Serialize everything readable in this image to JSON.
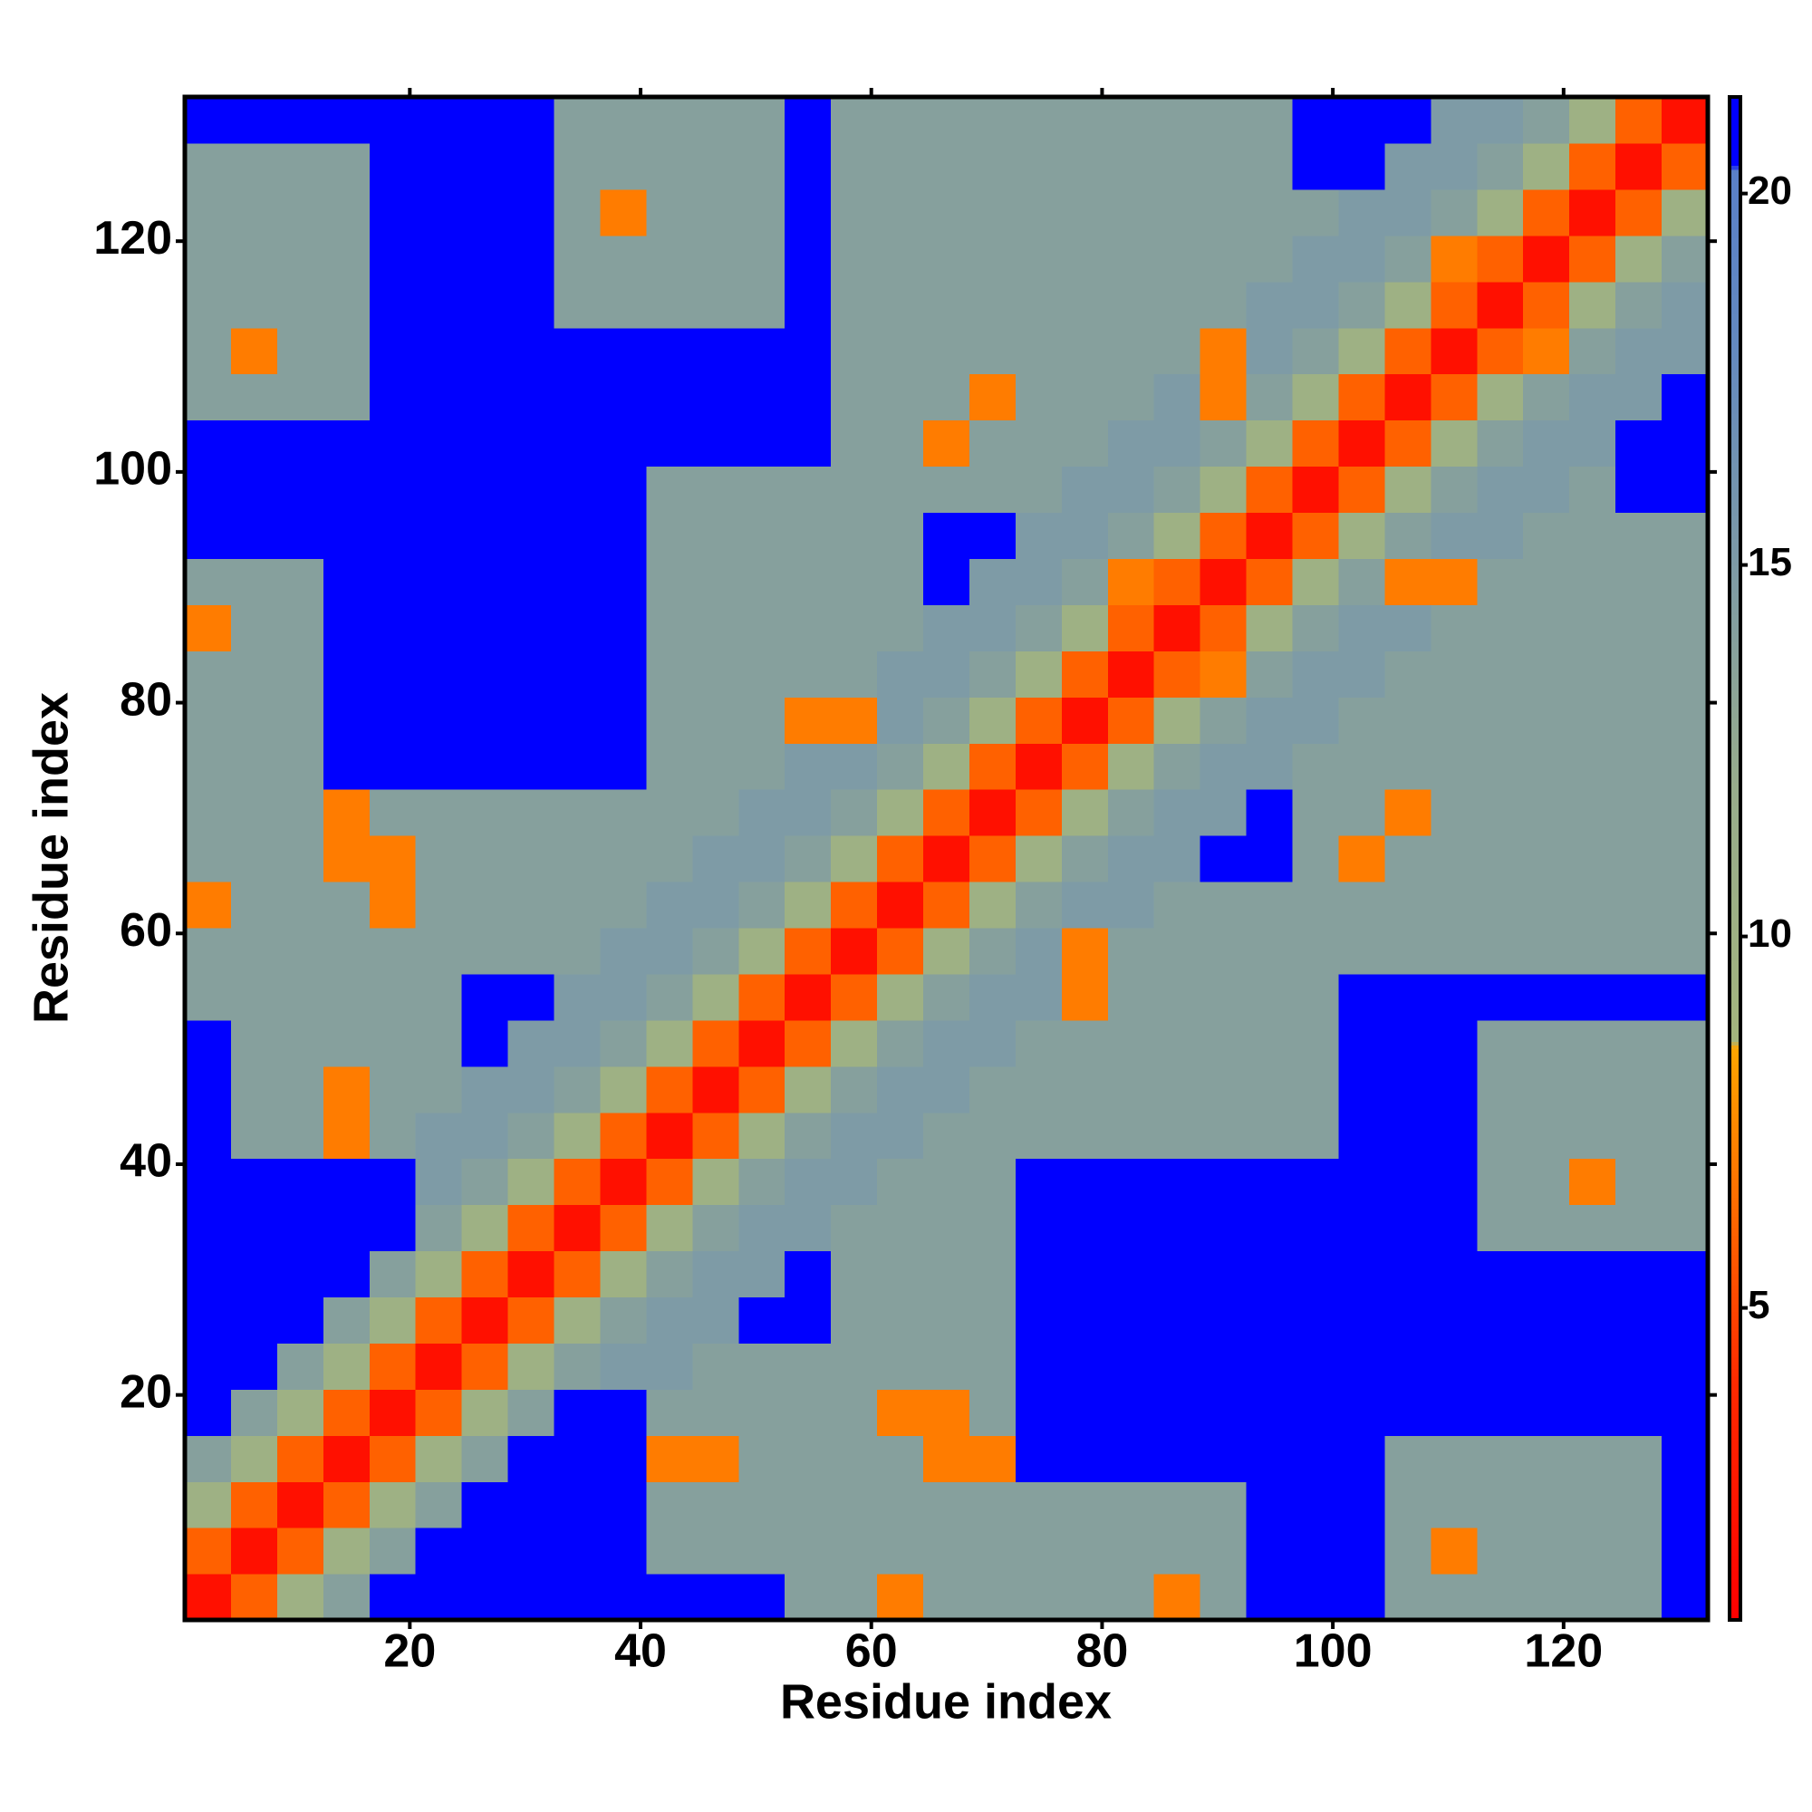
{
  "chart_data": {
    "type": "heatmap",
    "x_label": "Residue index",
    "y_label": "Residue index",
    "xlim": [
      0.5,
      132.5
    ],
    "ylim": [
      0.5,
      132.5
    ],
    "xticks": [
      20,
      40,
      60,
      80,
      100,
      120
    ],
    "yticks": [
      20,
      40,
      60,
      80,
      100,
      120
    ],
    "xbins": [
      0.5,
      4.5,
      8.5,
      12.5,
      16.5,
      20.5,
      24.5,
      28.5,
      32.5,
      36.5,
      40.5,
      44.5,
      48.5,
      52.5,
      56.5,
      60.5,
      64.5,
      68.5,
      72.5,
      76.5,
      80.5,
      84.5,
      88.5,
      92.5,
      96.5,
      100.5,
      104.5,
      108.5,
      112.5,
      116.5,
      120.5,
      124.5,
      128.5,
      132.5
    ],
    "ybins": [
      0.5,
      4.5,
      8.5,
      12.5,
      16.5,
      20.5,
      24.5,
      28.5,
      32.5,
      36.5,
      40.5,
      44.5,
      48.5,
      52.5,
      56.5,
      60.5,
      64.5,
      68.5,
      72.5,
      76.5,
      80.5,
      84.5,
      88.5,
      92.5,
      96.5,
      100.5,
      104.5,
      108.5,
      112.5,
      116.5,
      120.5,
      124.5,
      128.5,
      132.5
    ],
    "zlim": [
      0.8,
      21.3
    ],
    "zticks": [
      5,
      10,
      15,
      20
    ],
    "colorscale": [
      [
        0.8,
        "#ff0000"
      ],
      [
        4,
        "#ff2a00"
      ],
      [
        8.5,
        "#ffa500"
      ],
      [
        8.6,
        "#a3b47e"
      ],
      [
        12,
        "#98ac8c"
      ],
      [
        18,
        "#6389c0"
      ],
      [
        20.3,
        "#5a80c8"
      ],
      [
        20.4,
        "#0000ff"
      ],
      [
        21.3,
        "#0000ff"
      ]
    ],
    "z": [
      [
        2,
        6,
        10,
        14,
        21,
        21,
        21,
        21,
        21,
        21,
        21,
        21,
        21,
        14,
        14,
        7,
        14,
        14,
        14,
        14,
        14,
        7,
        14,
        21,
        21,
        21,
        14,
        14,
        14,
        14,
        14,
        14,
        21
      ],
      [
        6,
        2,
        6,
        10,
        14,
        21,
        21,
        21,
        21,
        21,
        14,
        14,
        14,
        14,
        14,
        14,
        14,
        14,
        14,
        14,
        14,
        14,
        14,
        21,
        21,
        21,
        14,
        7,
        14,
        14,
        14,
        14,
        21
      ],
      [
        10,
        6,
        2,
        6,
        10,
        14,
        21,
        21,
        21,
        21,
        14,
        14,
        14,
        14,
        14,
        14,
        14,
        14,
        14,
        14,
        14,
        14,
        14,
        21,
        21,
        21,
        14,
        14,
        14,
        14,
        14,
        14,
        21
      ],
      [
        14,
        10,
        6,
        2,
        6,
        10,
        14,
        21,
        21,
        21,
        7,
        7,
        14,
        14,
        14,
        14,
        7,
        7,
        21,
        21,
        21,
        21,
        21,
        21,
        21,
        21,
        14,
        14,
        14,
        14,
        14,
        14,
        21
      ],
      [
        21,
        14,
        10,
        6,
        2,
        6,
        10,
        14,
        21,
        21,
        14,
        14,
        14,
        14,
        14,
        7,
        7,
        14,
        21,
        21,
        21,
        21,
        21,
        21,
        21,
        21,
        21,
        21,
        21,
        21,
        21,
        21,
        21
      ],
      [
        21,
        21,
        14,
        10,
        6,
        2,
        6,
        10,
        14,
        15,
        15,
        14,
        14,
        14,
        14,
        14,
        14,
        14,
        21,
        21,
        21,
        21,
        21,
        21,
        21,
        21,
        21,
        21,
        21,
        21,
        21,
        21,
        21
      ],
      [
        21,
        21,
        21,
        14,
        10,
        6,
        2,
        6,
        10,
        14,
        15,
        15,
        21,
        21,
        14,
        14,
        14,
        14,
        21,
        21,
        21,
        21,
        21,
        21,
        21,
        21,
        21,
        21,
        21,
        21,
        21,
        21,
        21
      ],
      [
        21,
        21,
        21,
        21,
        14,
        10,
        6,
        2,
        6,
        10,
        14,
        15,
        15,
        21,
        14,
        14,
        14,
        14,
        21,
        21,
        21,
        21,
        21,
        21,
        21,
        21,
        21,
        21,
        21,
        21,
        21,
        21,
        21
      ],
      [
        21,
        21,
        21,
        21,
        21,
        14,
        10,
        6,
        2,
        6,
        10,
        14,
        15,
        15,
        14,
        14,
        14,
        14,
        21,
        21,
        21,
        21,
        21,
        21,
        21,
        21,
        21,
        21,
        14,
        14,
        14,
        14,
        14
      ],
      [
        21,
        21,
        21,
        21,
        21,
        15,
        14,
        10,
        6,
        2,
        6,
        10,
        14,
        15,
        15,
        14,
        14,
        14,
        21,
        21,
        21,
        21,
        21,
        21,
        21,
        21,
        21,
        21,
        14,
        14,
        7,
        14,
        14
      ],
      [
        21,
        14,
        14,
        7,
        14,
        15,
        15,
        14,
        10,
        6,
        2,
        6,
        10,
        14,
        15,
        15,
        14,
        14,
        14,
        14,
        14,
        14,
        14,
        14,
        14,
        21,
        21,
        21,
        14,
        14,
        14,
        14,
        14
      ],
      [
        21,
        14,
        14,
        7,
        14,
        14,
        15,
        15,
        14,
        10,
        6,
        2,
        6,
        10,
        14,
        15,
        15,
        14,
        14,
        14,
        14,
        14,
        14,
        14,
        14,
        21,
        21,
        21,
        14,
        14,
        14,
        14,
        14
      ],
      [
        21,
        14,
        14,
        14,
        14,
        14,
        21,
        15,
        15,
        14,
        10,
        6,
        2,
        6,
        10,
        14,
        15,
        15,
        14,
        14,
        14,
        14,
        14,
        14,
        14,
        21,
        21,
        21,
        14,
        14,
        14,
        14,
        14
      ],
      [
        14,
        14,
        14,
        14,
        14,
        14,
        21,
        21,
        15,
        15,
        14,
        10,
        6,
        2,
        6,
        10,
        14,
        15,
        15,
        7,
        14,
        14,
        14,
        14,
        14,
        21,
        21,
        21,
        21,
        21,
        21,
        21,
        21
      ],
      [
        14,
        14,
        14,
        14,
        14,
        14,
        14,
        14,
        14,
        15,
        15,
        14,
        10,
        6,
        2,
        6,
        10,
        14,
        15,
        7,
        14,
        14,
        14,
        14,
        14,
        14,
        14,
        14,
        14,
        14,
        14,
        14,
        14
      ],
      [
        7,
        14,
        14,
        14,
        7,
        14,
        14,
        14,
        14,
        14,
        15,
        15,
        14,
        10,
        6,
        2,
        6,
        10,
        14,
        15,
        15,
        14,
        14,
        14,
        14,
        14,
        14,
        14,
        14,
        14,
        14,
        14,
        14
      ],
      [
        14,
        14,
        14,
        7,
        7,
        14,
        14,
        14,
        14,
        14,
        14,
        15,
        15,
        14,
        10,
        6,
        2,
        6,
        10,
        14,
        15,
        15,
        21,
        21,
        14,
        7,
        14,
        14,
        14,
        14,
        14,
        14,
        14
      ],
      [
        14,
        14,
        14,
        7,
        14,
        14,
        14,
        14,
        14,
        14,
        14,
        14,
        15,
        15,
        14,
        10,
        6,
        2,
        6,
        10,
        14,
        15,
        15,
        21,
        14,
        14,
        7,
        14,
        14,
        14,
        14,
        14,
        14
      ],
      [
        14,
        14,
        14,
        21,
        21,
        21,
        21,
        21,
        21,
        21,
        14,
        14,
        14,
        15,
        15,
        14,
        10,
        6,
        2,
        6,
        10,
        14,
        15,
        15,
        14,
        14,
        14,
        14,
        14,
        14,
        14,
        14,
        14
      ],
      [
        14,
        14,
        14,
        21,
        21,
        21,
        21,
        21,
        21,
        21,
        14,
        14,
        14,
        7,
        7,
        15,
        14,
        10,
        6,
        2,
        6,
        10,
        14,
        15,
        15,
        14,
        14,
        14,
        14,
        14,
        14,
        14,
        14
      ],
      [
        14,
        14,
        14,
        21,
        21,
        21,
        21,
        21,
        21,
        21,
        14,
        14,
        14,
        14,
        14,
        15,
        15,
        14,
        10,
        6,
        2,
        6,
        7,
        14,
        15,
        15,
        14,
        14,
        14,
        14,
        14,
        14,
        14
      ],
      [
        7,
        14,
        14,
        21,
        21,
        21,
        21,
        21,
        21,
        21,
        14,
        14,
        14,
        14,
        14,
        14,
        15,
        15,
        14,
        10,
        6,
        2,
        6,
        10,
        14,
        15,
        15,
        14,
        14,
        14,
        14,
        14,
        14
      ],
      [
        14,
        14,
        14,
        21,
        21,
        21,
        21,
        21,
        21,
        21,
        14,
        14,
        14,
        14,
        14,
        14,
        21,
        15,
        15,
        14,
        7,
        6,
        2,
        6,
        10,
        14,
        7,
        7,
        14,
        14,
        14,
        14,
        14
      ],
      [
        21,
        21,
        21,
        21,
        21,
        21,
        21,
        21,
        21,
        21,
        14,
        14,
        14,
        14,
        14,
        14,
        21,
        21,
        15,
        15,
        14,
        10,
        6,
        2,
        6,
        10,
        14,
        15,
        15,
        14,
        14,
        14,
        14
      ],
      [
        21,
        21,
        21,
        21,
        21,
        21,
        21,
        21,
        21,
        21,
        14,
        14,
        14,
        14,
        14,
        14,
        14,
        14,
        14,
        15,
        15,
        14,
        10,
        6,
        2,
        6,
        10,
        14,
        15,
        15,
        14,
        21,
        21
      ],
      [
        21,
        21,
        21,
        21,
        21,
        21,
        21,
        21,
        21,
        21,
        21,
        21,
        21,
        21,
        14,
        14,
        7,
        14,
        14,
        14,
        15,
        15,
        14,
        10,
        6,
        2,
        6,
        10,
        14,
        15,
        15,
        21,
        21
      ],
      [
        14,
        14,
        14,
        14,
        21,
        21,
        21,
        21,
        21,
        21,
        21,
        21,
        21,
        21,
        14,
        14,
        14,
        7,
        14,
        14,
        14,
        15,
        7,
        14,
        10,
        6,
        2,
        6,
        10,
        14,
        15,
        15,
        21
      ],
      [
        14,
        7,
        14,
        14,
        21,
        21,
        21,
        21,
        21,
        21,
        21,
        21,
        21,
        21,
        14,
        14,
        14,
        14,
        14,
        14,
        14,
        14,
        7,
        15,
        14,
        10,
        6,
        2,
        6,
        7,
        14,
        15,
        15
      ],
      [
        14,
        14,
        14,
        14,
        21,
        21,
        21,
        21,
        14,
        14,
        14,
        14,
        14,
        21,
        14,
        14,
        14,
        14,
        14,
        14,
        14,
        14,
        14,
        15,
        15,
        14,
        10,
        6,
        2,
        6,
        10,
        14,
        15
      ],
      [
        14,
        14,
        14,
        14,
        21,
        21,
        21,
        21,
        14,
        14,
        14,
        14,
        14,
        21,
        14,
        14,
        14,
        14,
        14,
        14,
        14,
        14,
        14,
        14,
        15,
        15,
        14,
        7,
        6,
        2,
        6,
        10,
        14
      ],
      [
        14,
        14,
        14,
        14,
        21,
        21,
        21,
        21,
        14,
        7,
        14,
        14,
        14,
        21,
        14,
        14,
        14,
        14,
        14,
        14,
        14,
        14,
        14,
        14,
        14,
        15,
        15,
        14,
        10,
        6,
        2,
        6,
        10
      ],
      [
        14,
        14,
        14,
        14,
        21,
        21,
        21,
        21,
        14,
        14,
        14,
        14,
        14,
        21,
        14,
        14,
        14,
        14,
        14,
        14,
        14,
        14,
        14,
        14,
        21,
        21,
        15,
        15,
        14,
        10,
        6,
        2,
        6
      ],
      [
        21,
        21,
        21,
        21,
        21,
        21,
        21,
        21,
        14,
        14,
        14,
        14,
        14,
        21,
        14,
        14,
        14,
        14,
        14,
        14,
        14,
        14,
        14,
        14,
        21,
        21,
        21,
        15,
        15,
        14,
        10,
        6,
        2
      ]
    ]
  }
}
